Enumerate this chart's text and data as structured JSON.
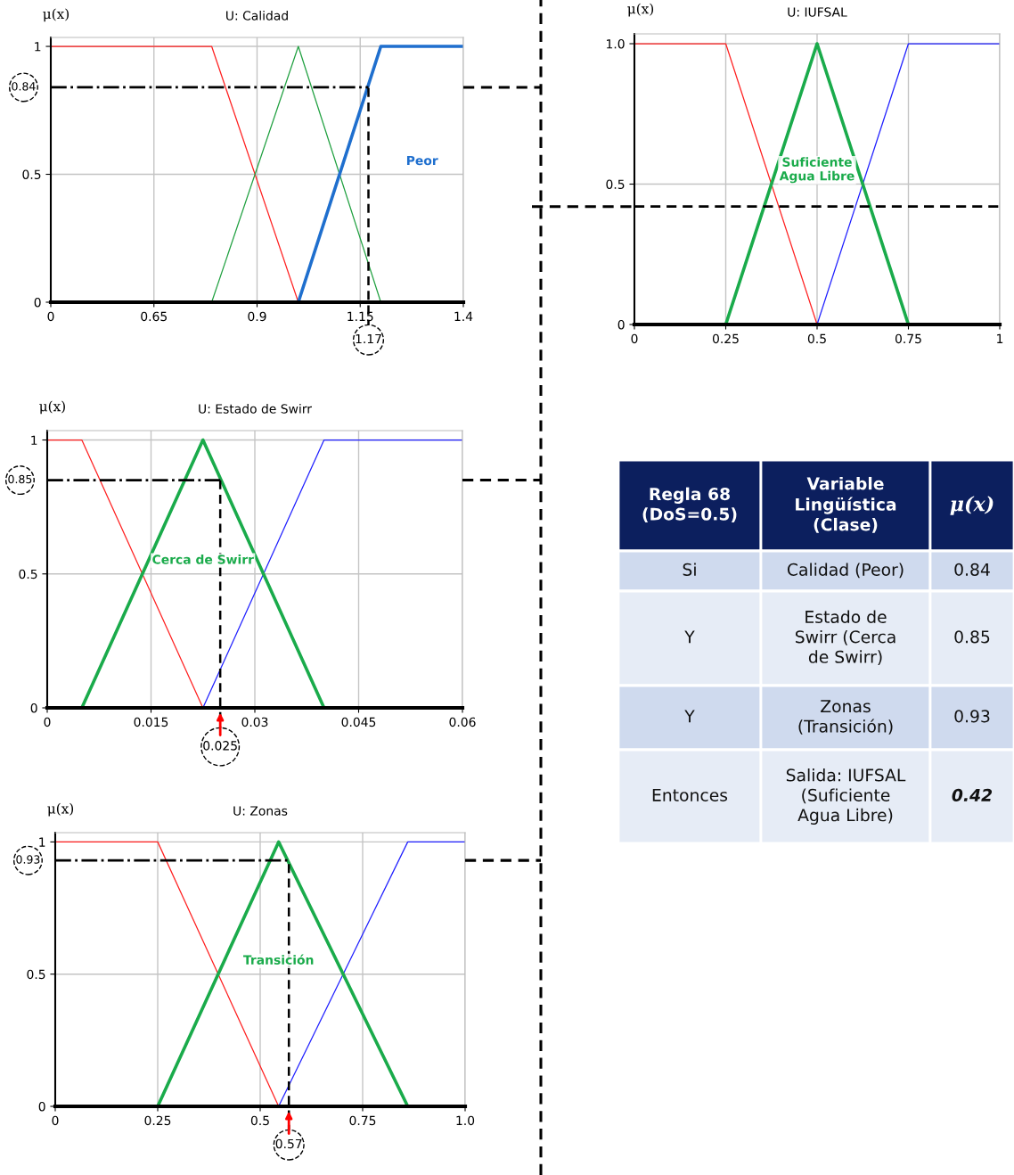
{
  "chart_data": [
    {
      "type": "line",
      "title": "U: Calidad",
      "ylabel": "μ(x)",
      "xlim": [
        0.4,
        1.4
      ],
      "xticks": [
        {
          "value": 0.4,
          "label": "0"
        },
        0.65,
        0.9,
        1.15,
        1.4
      ],
      "ylim": [
        0,
        1.035
      ],
      "yticks": [
        0,
        0.5,
        1
      ],
      "grid": true,
      "legend": false,
      "series": [
        {
          "color": "#ff2020",
          "x": [
            0.4,
            0.79,
            1.0,
            1.4
          ],
          "values": [
            1,
            1,
            0,
            0
          ]
        },
        {
          "color": "#20a040",
          "x": [
            0.4,
            0.79,
            1.0,
            1.2,
            1.4
          ],
          "values": [
            0,
            0,
            1,
            0,
            0
          ]
        },
        {
          "name": "Peor",
          "color": "#1f6fce",
          "x": [
            0.4,
            1.0,
            1.2,
            1.4
          ],
          "values": [
            0,
            0,
            1,
            1
          ]
        }
      ],
      "ref_lines": [
        {
          "axis": "y",
          "value": 0.84,
          "label": "0.84",
          "line_style": "dashdot",
          "color": "#000000"
        },
        {
          "axis": "x",
          "value": 1.17,
          "label": "1.17",
          "line_style": "dashed",
          "color": "#000000"
        }
      ]
    },
    {
      "type": "line",
      "title": "U: IUFSAL",
      "ylabel": "μ(x)",
      "xlim": [
        0,
        1
      ],
      "xticks": [
        0,
        0.25,
        0.5,
        0.75,
        1
      ],
      "ylim": [
        0,
        1.035
      ],
      "yticks": [
        0,
        0.5,
        {
          "value": 1,
          "label": "1.0"
        }
      ],
      "grid": true,
      "legend": false,
      "series": [
        {
          "color": "#ff2020",
          "x": [
            0,
            0.25,
            0.5,
            1
          ],
          "values": [
            1,
            1,
            0,
            0
          ]
        },
        {
          "color": "#2020ff",
          "x": [
            0,
            0.5,
            0.75,
            1
          ],
          "values": [
            0,
            0,
            1,
            1
          ]
        },
        {
          "name": "Suficiente\nAgua Libre",
          "color": "#1aab4b",
          "x": [
            0,
            0.25,
            0.5,
            0.75,
            1
          ],
          "values": [
            0,
            0,
            1,
            0,
            0
          ]
        }
      ],
      "ref_lines": [
        {
          "axis": "y",
          "value": 0.42,
          "line_style": "dashed",
          "color": "#000000"
        }
      ]
    },
    {
      "type": "line",
      "title": "U: Estado de Swirr",
      "ylabel": "μ(x)",
      "xlim": [
        0,
        0.06
      ],
      "xticks": [
        0,
        0.015,
        0.03,
        0.045,
        0.06
      ],
      "ylim": [
        0,
        1.035
      ],
      "yticks": [
        0,
        0.5,
        1
      ],
      "grid": true,
      "legend": false,
      "series": [
        {
          "color": "#ff2020",
          "x": [
            0,
            0.005,
            0.0225,
            0.06
          ],
          "values": [
            1,
            1,
            0,
            0
          ]
        },
        {
          "color": "#2020ff",
          "x": [
            0,
            0.0225,
            0.04,
            0.06
          ],
          "values": [
            0,
            0,
            1,
            1
          ]
        },
        {
          "name": "Cerca de Swirr",
          "color": "#1aab4b",
          "x": [
            0,
            0.005,
            0.0225,
            0.04,
            0.06
          ],
          "values": [
            0,
            0,
            1,
            0,
            0
          ]
        }
      ],
      "ref_lines": [
        {
          "axis": "y",
          "value": 0.85,
          "label": "0.85",
          "line_style": "dashdot",
          "color": "#000000"
        },
        {
          "axis": "x",
          "value": 0.025,
          "label": "0.025",
          "line_style": "dashed",
          "color": "#000000"
        }
      ]
    },
    {
      "type": "other",
      "annotations": [
        "Regla 68\n(DoS=0.5)",
        "Variable\nLingüística\n(Clase)",
        "μ(x)",
        "Si",
        "Calidad (Peor)",
        "0.84",
        "Y",
        "Estado de\nSwirr (Cerca\nde Swirr)",
        "0.85",
        "Y",
        "Zonas\n(Transición)",
        "0.93",
        "Entonces",
        "Salida: IUFSAL\n(Suficiente\nAgua Libre)",
        "0.42"
      ]
    },
    {
      "type": "line",
      "title": "U: Zonas",
      "ylabel": "μ(x)",
      "xlim": [
        0,
        1
      ],
      "xticks": [
        0,
        0.25,
        0.5,
        0.75,
        {
          "value": 1,
          "label": "1.0"
        }
      ],
      "ylim": [
        0,
        1.035
      ],
      "yticks": [
        0,
        0.5,
        1
      ],
      "grid": true,
      "legend": false,
      "series": [
        {
          "color": "#ff2020",
          "x": [
            0,
            0.25,
            0.545,
            1
          ],
          "values": [
            1,
            1,
            0,
            0
          ]
        },
        {
          "color": "#2020ff",
          "x": [
            0,
            0.545,
            0.86,
            1
          ],
          "values": [
            0,
            0,
            1,
            1
          ]
        },
        {
          "name": "Transición",
          "color": "#1aab4b",
          "x": [
            0,
            0.25,
            0.545,
            0.86,
            1
          ],
          "values": [
            0,
            0,
            1,
            0,
            0
          ]
        }
      ],
      "ref_lines": [
        {
          "axis": "y",
          "value": 0.93,
          "label": "0.93",
          "line_style": "dashdot",
          "color": "#000000"
        },
        {
          "axis": "x",
          "value": 0.57,
          "label": "0.57",
          "line_style": "dashed",
          "color": "#000000"
        }
      ]
    }
  ]
}
